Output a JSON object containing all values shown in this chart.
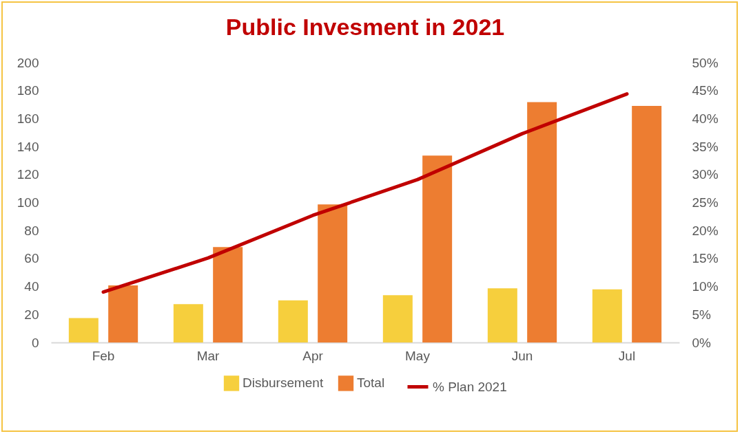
{
  "chart_data": {
    "type": "bar",
    "title": "Public Invesment in 2021",
    "categories": [
      "Feb",
      "Mar",
      "Apr",
      "May",
      "Jun",
      "Jul"
    ],
    "series": [
      {
        "name": "Disbursement",
        "color": "#f6cf3d",
        "values": [
          17.5,
          27.4,
          30.1,
          33.8,
          38.7,
          37.9
        ]
      },
      {
        "name": "Total",
        "color": "#ed7d31",
        "values": [
          40.8,
          68.2,
          98.6,
          133.5,
          171.7,
          169.1
        ]
      },
      {
        "name": "% Plan 2021",
        "type": "line",
        "axis": "y2",
        "color": "#c00000",
        "values": [
          9.0,
          15.1,
          22.7,
          29.1,
          37.3,
          44.4
        ]
      }
    ],
    "ylim": [
      0,
      200
    ],
    "yticks": [
      0,
      20,
      40,
      60,
      80,
      100,
      120,
      140,
      160,
      180,
      200
    ],
    "y2lim": [
      0,
      50
    ],
    "y2ticks": [
      {
        "value": 0,
        "label": "0%"
      },
      {
        "value": 5,
        "label": "5%"
      },
      {
        "value": 10,
        "label": "10%"
      },
      {
        "value": 15,
        "label": "15%"
      },
      {
        "value": 20,
        "label": "20%"
      },
      {
        "value": 25,
        "label": "25%"
      },
      {
        "value": 30,
        "label": "30%"
      },
      {
        "value": 35,
        "label": "35%"
      },
      {
        "value": 40,
        "label": "40%"
      },
      {
        "value": 45,
        "label": "45%"
      },
      {
        "value": 50,
        "label": "50%"
      }
    ],
    "grid": false,
    "legend": "bottom"
  }
}
